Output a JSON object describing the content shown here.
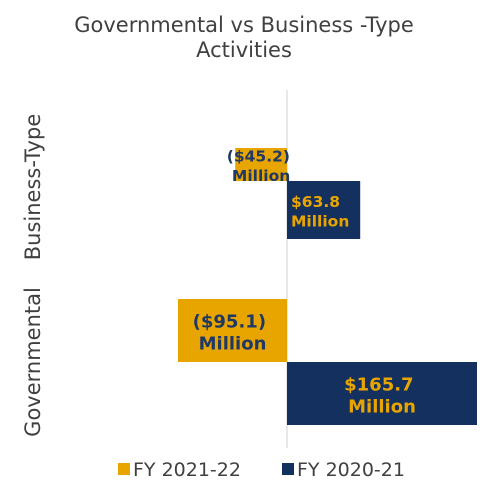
{
  "chart_data": {
    "type": "bar",
    "orientation": "horizontal",
    "title_lines": [
      "Governmental vs Business -Type",
      "Activities"
    ],
    "categories": [
      "Business-Type",
      "Governmental"
    ],
    "series": [
      {
        "name": "FY 2021-22",
        "color": "#E8A500",
        "label_color": "#1F3864",
        "values": [
          -45.2,
          -95.1
        ],
        "labels": [
          [
            "($45.2)",
            "Million"
          ],
          [
            "($95.1)",
            "Million"
          ]
        ]
      },
      {
        "name": "FY 2020-21",
        "color": "#14305F",
        "label_color": "#E8A500",
        "values": [
          63.8,
          165.7
        ],
        "labels": [
          [
            "$63.8",
            "Million"
          ],
          [
            "$165.7",
            "Million"
          ]
        ]
      }
    ],
    "xlim": [
      -100,
      170
    ],
    "grid": false,
    "legend_position": "bottom"
  }
}
